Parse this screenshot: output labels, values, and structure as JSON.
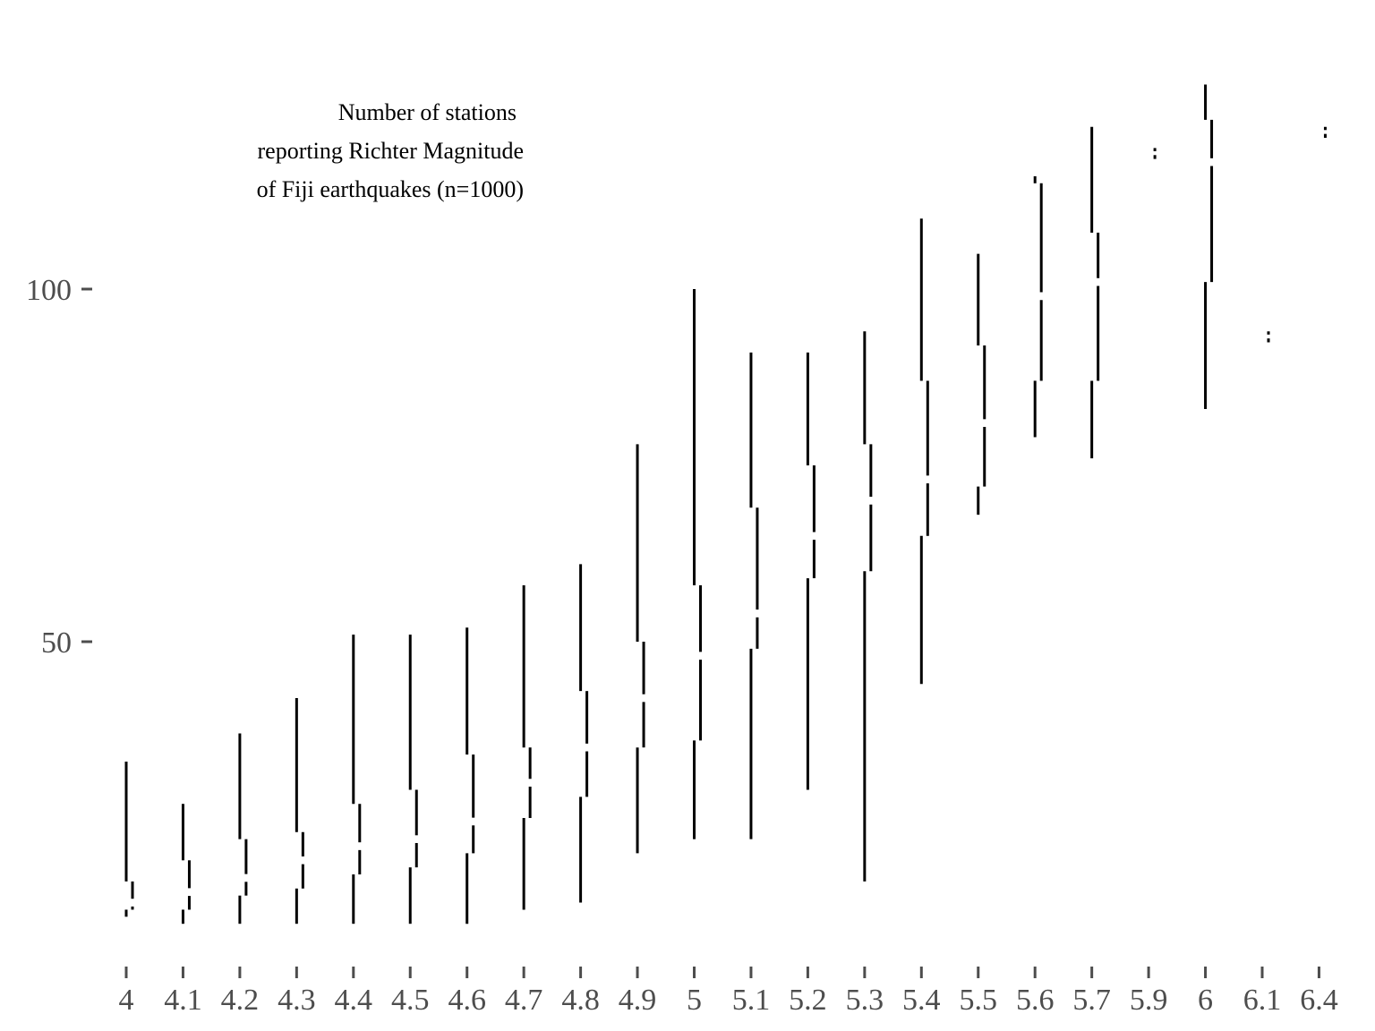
{
  "chart_data": {
    "type": "tufte-boxplot",
    "title_lines": [
      "Number of stations",
      "reporting Richter Magnitude",
      "of Fiji earthquakes (n=1000)"
    ],
    "xlabel": "",
    "ylabel": "",
    "y_ticks": [
      {
        "value": 50,
        "label": "50"
      },
      {
        "value": 100,
        "label": "100"
      }
    ],
    "categories": [
      "4",
      "4.1",
      "4.2",
      "4.3",
      "4.4",
      "4.5",
      "4.6",
      "4.7",
      "4.8",
      "4.9",
      "5",
      "5.1",
      "5.2",
      "5.3",
      "5.4",
      "5.5",
      "5.6",
      "5.7",
      "5.9",
      "6",
      "6.1",
      "6.4"
    ],
    "boxes": [
      {
        "min": 11,
        "q1": 12,
        "median": 13,
        "q3": 16,
        "max": 33
      },
      {
        "min": 10,
        "q1": 12,
        "median": 14.5,
        "q3": 19,
        "max": 27
      },
      {
        "min": 10,
        "q1": 14,
        "median": 16.5,
        "q3": 22,
        "max": 37
      },
      {
        "min": 10,
        "q1": 15,
        "median": 19,
        "q3": 23,
        "max": 42
      },
      {
        "min": 10,
        "q1": 17,
        "median": 21,
        "q3": 27,
        "max": 51
      },
      {
        "min": 10,
        "q1": 18,
        "median": 22,
        "q3": 29,
        "max": 51
      },
      {
        "min": 10,
        "q1": 20,
        "median": 24.5,
        "q3": 34,
        "max": 52
      },
      {
        "min": 12,
        "q1": 25,
        "median": 30,
        "q3": 35,
        "max": 58
      },
      {
        "min": 13,
        "q1": 28,
        "median": 35,
        "q3": 43,
        "max": 61
      },
      {
        "min": 20,
        "q1": 35,
        "median": 42,
        "q3": 50,
        "max": 78
      },
      {
        "min": 22,
        "q1": 36,
        "median": 48,
        "q3": 58,
        "max": 100
      },
      {
        "min": 22,
        "q1": 49,
        "median": 54,
        "q3": 69,
        "max": 91
      },
      {
        "min": 29,
        "q1": 59,
        "median": 65,
        "q3": 75,
        "max": 91
      },
      {
        "min": 16,
        "q1": 60,
        "median": 70,
        "q3": 78,
        "max": 94
      },
      {
        "min": 44,
        "q1": 65,
        "median": 73,
        "q3": 87,
        "max": 110
      },
      {
        "min": 68,
        "q1": 72,
        "median": 81,
        "q3": 92,
        "max": 105
      },
      {
        "min": 79,
        "q1": 87,
        "median": 99,
        "q3": 115,
        "max": 116
      },
      {
        "min": 76,
        "q1": 87,
        "median": 101,
        "q3": 108,
        "max": 123
      },
      {
        "min": 119,
        "q1": 119,
        "median": 119,
        "q3": 120,
        "max": 120
      },
      {
        "min": 83,
        "q1": 101,
        "median": 118,
        "q3": 124,
        "max": 129
      },
      {
        "min": 93,
        "q1": 93,
        "median": 93,
        "q3": 94,
        "max": 94
      },
      {
        "min": 122,
        "q1": 122,
        "median": 122,
        "q3": 123,
        "max": 123
      }
    ]
  }
}
